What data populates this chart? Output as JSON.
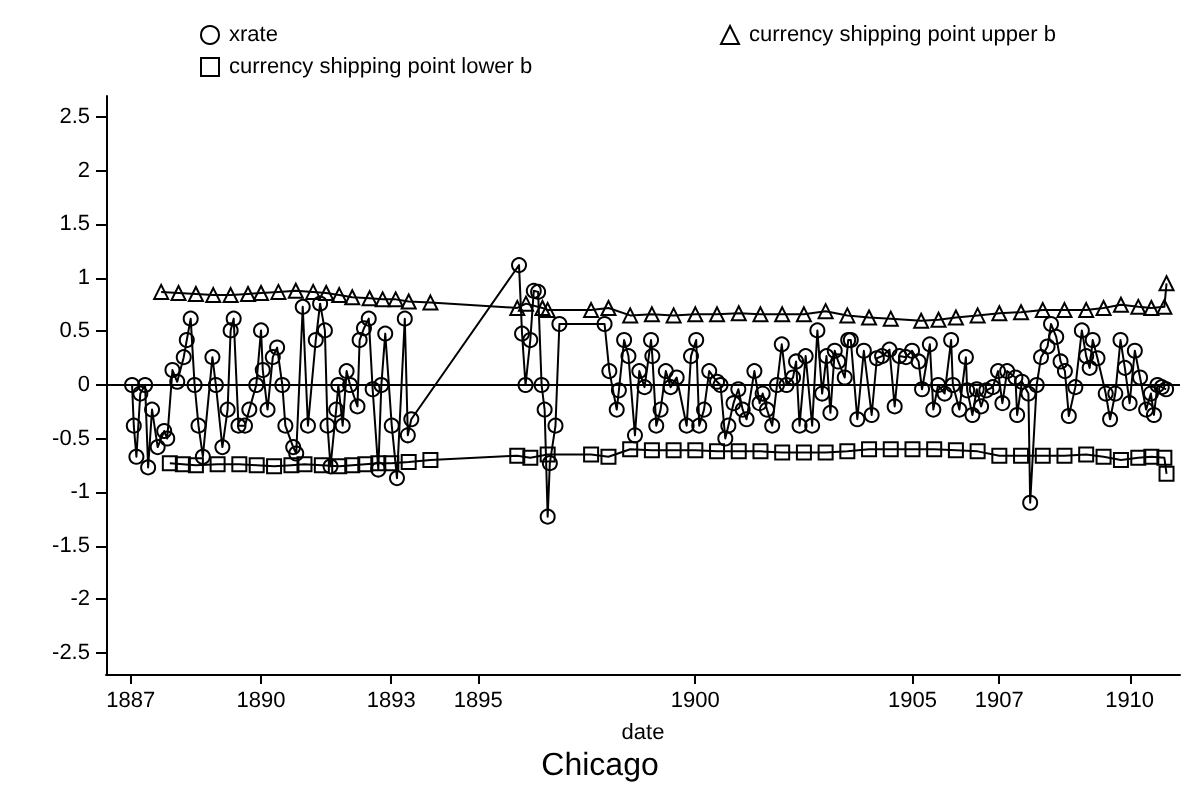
{
  "chart_data": {
    "type": "line",
    "title": "Chicago",
    "xlabel": "date",
    "legend": "top",
    "grid": false,
    "xlim": [
      1886.43,
      1911.16
    ],
    "xticks": [
      1887,
      1890,
      1893,
      1895,
      1900,
      1905,
      1907,
      1910
    ],
    "ylim": [
      -2.7,
      2.7
    ],
    "yticks": [
      -2.5,
      -2,
      -1.5,
      -1,
      -0.5,
      0,
      0.5,
      1,
      1.5,
      2,
      2.5
    ],
    "ref_lines": [
      {
        "axis": "y",
        "value": 0,
        "color": "#000000",
        "line_style": "solid"
      }
    ],
    "series": [
      {
        "name": "xrate",
        "color": "#000000",
        "marker": "circle",
        "line_style": "solid",
        "x": [
          1887.03,
          1887.07,
          1887.13,
          1887.22,
          1887.33,
          1887.4,
          1887.49,
          1887.62,
          1887.77,
          1887.84,
          1887.96,
          1888.07,
          1888.22,
          1888.29,
          1888.38,
          1888.47,
          1888.56,
          1888.66,
          1888.88,
          1888.96,
          1889.11,
          1889.23,
          1889.3,
          1889.37,
          1889.48,
          1889.63,
          1889.73,
          1889.89,
          1890.0,
          1890.04,
          1890.15,
          1890.27,
          1890.37,
          1890.49,
          1890.56,
          1890.74,
          1890.81,
          1890.96,
          1891.08,
          1891.26,
          1891.36,
          1891.47,
          1891.53,
          1891.6,
          1891.73,
          1891.78,
          1891.88,
          1891.97,
          1892.05,
          1892.22,
          1892.27,
          1892.37,
          1892.48,
          1892.57,
          1892.7,
          1892.77,
          1892.86,
          1893.01,
          1893.13,
          1893.31,
          1893.38,
          1893.46,
          1895.94,
          1896.01,
          1896.09,
          1896.2,
          1896.28,
          1896.38,
          1896.46,
          1896.53,
          1896.6,
          1896.65,
          1896.78,
          1896.87,
          1897.91,
          1898.02,
          1898.19,
          1898.24,
          1898.36,
          1898.46,
          1898.61,
          1898.71,
          1898.83,
          1898.98,
          1899.01,
          1899.1,
          1899.2,
          1899.32,
          1899.43,
          1899.57,
          1899.8,
          1899.9,
          1900.02,
          1900.09,
          1900.2,
          1900.32,
          1900.5,
          1900.58,
          1900.69,
          1900.76,
          1900.88,
          1900.99,
          1901.09,
          1901.18,
          1901.36,
          1901.48,
          1901.55,
          1901.65,
          1901.77,
          1901.88,
          1901.99,
          1902.1,
          1902.25,
          1902.32,
          1902.4,
          1902.54,
          1902.69,
          1902.81,
          1902.92,
          1903.02,
          1903.11,
          1903.21,
          1903.29,
          1903.44,
          1903.52,
          1903.58,
          1903.73,
          1903.88,
          1904.06,
          1904.18,
          1904.3,
          1904.47,
          1904.59,
          1904.7,
          1904.85,
          1904.99,
          1905.14,
          1905.22,
          1905.4,
          1905.48,
          1905.59,
          1905.74,
          1905.89,
          1905.93,
          1906.08,
          1906.23,
          1906.26,
          1906.38,
          1906.48,
          1906.58,
          1906.7,
          1906.85,
          1906.97,
          1907.07,
          1907.18,
          1907.37,
          1907.41,
          1907.52,
          1907.67,
          1907.71,
          1907.86,
          1907.96,
          1908.11,
          1908.19,
          1908.31,
          1908.41,
          1908.51,
          1908.6,
          1908.75,
          1908.9,
          1909.0,
          1909.08,
          1909.15,
          1909.26,
          1909.45,
          1909.55,
          1909.67,
          1909.79,
          1909.89,
          1910.0,
          1910.12,
          1910.24,
          1910.38,
          1910.49,
          1910.56,
          1910.64,
          1910.74,
          1910.84
        ],
        "values": [
          0,
          -0.38,
          -0.67,
          -0.08,
          0,
          -0.77,
          -0.23,
          -0.58,
          -0.43,
          -0.5,
          0.14,
          0.03,
          0.26,
          0.42,
          0.62,
          0,
          -0.38,
          -0.67,
          0.26,
          0,
          -0.58,
          -0.23,
          0.51,
          0.62,
          -0.38,
          -0.38,
          -0.23,
          0,
          0.51,
          0.14,
          -0.23,
          0.26,
          0.35,
          0,
          -0.38,
          -0.58,
          -0.64,
          0.73,
          -0.38,
          0.42,
          0.76,
          0.51,
          -0.38,
          -0.76,
          -0.23,
          0,
          -0.38,
          0.13,
          0,
          -0.2,
          0.42,
          0.53,
          0.62,
          -0.04,
          -0.79,
          0,
          0.48,
          -0.38,
          -0.87,
          0.62,
          -0.47,
          -0.32,
          1.12,
          0.48,
          0,
          0.42,
          0.88,
          0.87,
          0,
          -0.23,
          -1.23,
          -0.73,
          -0.38,
          0.57,
          0.57,
          0.13,
          -0.23,
          -0.05,
          0.42,
          0.27,
          -0.47,
          0.13,
          -0.02,
          0.42,
          0.27,
          -0.38,
          -0.23,
          0.13,
          -0.02,
          0.07,
          -0.38,
          0.27,
          0.42,
          -0.38,
          -0.23,
          0.13,
          0.03,
          0,
          -0.5,
          -0.38,
          -0.17,
          -0.04,
          -0.23,
          -0.32,
          0.13,
          -0.17,
          -0.08,
          -0.23,
          -0.38,
          0,
          0.38,
          0,
          0.07,
          0.22,
          -0.38,
          0.27,
          -0.38,
          0.51,
          -0.08,
          0.27,
          -0.26,
          0.32,
          0.22,
          0.07,
          0.42,
          0.42,
          -0.32,
          0.32,
          -0.28,
          0.25,
          0.27,
          0.33,
          -0.2,
          0.27,
          0.26,
          0.32,
          0.22,
          -0.04,
          0.38,
          -0.23,
          0,
          -0.08,
          0.42,
          0,
          -0.23,
          0.26,
          -0.05,
          -0.28,
          -0.04,
          -0.2,
          -0.05,
          -0.02,
          0.13,
          -0.17,
          0.13,
          0.07,
          -0.28,
          0.03,
          -0.08,
          -1.1,
          0,
          0.26,
          0.36,
          0.57,
          0.45,
          0.22,
          0.13,
          -0.29,
          -0.02,
          0.51,
          0.27,
          0.16,
          0.42,
          0.25,
          -0.08,
          -0.32,
          -0.08,
          0.42,
          0.16,
          -0.17,
          0.32,
          0.07,
          -0.23,
          -0.08,
          -0.28,
          0,
          -0.02,
          -0.04
        ]
      },
      {
        "name": "currency shipping point upper b",
        "color": "#000000",
        "marker": "triangle",
        "line_style": "solid",
        "x": [
          1887.7,
          1888.1,
          1888.5,
          1888.9,
          1889.3,
          1889.7,
          1890.0,
          1890.4,
          1890.8,
          1891.2,
          1891.5,
          1891.8,
          1892.1,
          1892.5,
          1892.8,
          1893.1,
          1893.4,
          1893.9,
          1895.9,
          1896.1,
          1896.48,
          1896.6,
          1897.6,
          1898.0,
          1898.5,
          1899.0,
          1899.5,
          1900.0,
          1900.5,
          1901.0,
          1901.5,
          1902.0,
          1902.5,
          1903.0,
          1903.5,
          1904.0,
          1904.5,
          1905.2,
          1905.6,
          1906.0,
          1906.5,
          1907.0,
          1907.5,
          1908.0,
          1908.5,
          1909.0,
          1909.4,
          1909.8,
          1910.2,
          1910.5,
          1910.8,
          1910.85
        ],
        "values": [
          0.87,
          0.86,
          0.85,
          0.84,
          0.84,
          0.85,
          0.86,
          0.87,
          0.88,
          0.87,
          0.86,
          0.84,
          0.82,
          0.81,
          0.8,
          0.8,
          0.78,
          0.77,
          0.72,
          0.76,
          0.72,
          0.7,
          0.7,
          0.72,
          0.65,
          0.66,
          0.65,
          0.66,
          0.66,
          0.67,
          0.66,
          0.66,
          0.66,
          0.69,
          0.65,
          0.63,
          0.62,
          0.6,
          0.61,
          0.63,
          0.65,
          0.67,
          0.68,
          0.7,
          0.7,
          0.7,
          0.72,
          0.75,
          0.73,
          0.72,
          0.73,
          0.95
        ]
      },
      {
        "name": "currency shipping point lower b",
        "color": "#000000",
        "marker": "square",
        "line_style": "solid",
        "x": [
          1887.9,
          1888.2,
          1888.5,
          1889.0,
          1889.5,
          1889.9,
          1890.3,
          1890.7,
          1891.0,
          1891.4,
          1891.8,
          1892.1,
          1892.4,
          1892.7,
          1893.0,
          1893.4,
          1893.9,
          1895.9,
          1896.2,
          1896.6,
          1897.6,
          1898.0,
          1898.5,
          1899.0,
          1899.5,
          1900.0,
          1900.5,
          1901.0,
          1901.5,
          1902.0,
          1902.5,
          1903.0,
          1903.5,
          1904.0,
          1904.5,
          1905.0,
          1905.5,
          1906.0,
          1906.5,
          1907.0,
          1907.5,
          1908.0,
          1908.5,
          1909.0,
          1909.4,
          1909.8,
          1910.2,
          1910.5,
          1910.8,
          1910.85
        ],
        "values": [
          -0.73,
          -0.74,
          -0.75,
          -0.74,
          -0.74,
          -0.75,
          -0.76,
          -0.75,
          -0.74,
          -0.75,
          -0.76,
          -0.75,
          -0.74,
          -0.73,
          -0.73,
          -0.72,
          -0.7,
          -0.66,
          -0.68,
          -0.65,
          -0.65,
          -0.67,
          -0.6,
          -0.61,
          -0.61,
          -0.61,
          -0.62,
          -0.62,
          -0.62,
          -0.63,
          -0.63,
          -0.63,
          -0.62,
          -0.6,
          -0.6,
          -0.6,
          -0.6,
          -0.61,
          -0.62,
          -0.66,
          -0.66,
          -0.66,
          -0.66,
          -0.65,
          -0.67,
          -0.7,
          -0.68,
          -0.67,
          -0.68,
          -0.83
        ]
      }
    ]
  }
}
